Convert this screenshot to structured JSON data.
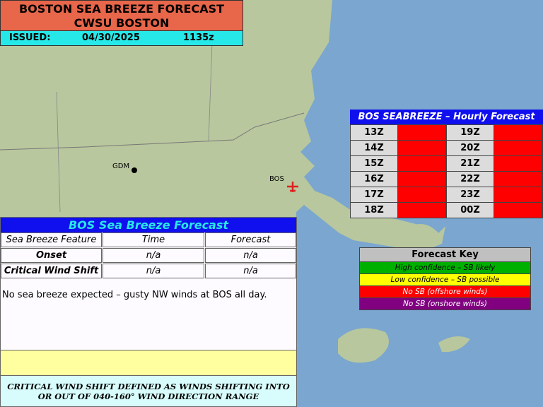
{
  "header": {
    "title": "BOSTON SEA BREEZE FORECAST",
    "office": "CWSU BOSTON",
    "issued_label": "ISSUED:",
    "issued_date": "04/30/2025",
    "issued_time": "1135z"
  },
  "map_labels": {
    "gdm": "GDM",
    "bos": "BOS"
  },
  "hourly": {
    "title": "BOS SEABREEZE – Hourly Forecast",
    "cells": [
      {
        "hour": "13Z",
        "color": "#ff0000"
      },
      {
        "hour": "14Z",
        "color": "#ff0000"
      },
      {
        "hour": "15Z",
        "color": "#ff0000"
      },
      {
        "hour": "16Z",
        "color": "#ff0000"
      },
      {
        "hour": "17Z",
        "color": "#ff0000"
      },
      {
        "hour": "18Z",
        "color": "#ff0000"
      },
      {
        "hour": "19Z",
        "color": "#ff0000"
      },
      {
        "hour": "20Z",
        "color": "#ff0000"
      },
      {
        "hour": "21Z",
        "color": "#ff0000"
      },
      {
        "hour": "22Z",
        "color": "#ff0000"
      },
      {
        "hour": "23Z",
        "color": "#ff0000"
      },
      {
        "hour": "00Z",
        "color": "#ff0000"
      }
    ]
  },
  "key": {
    "title": "Forecast Key",
    "items": [
      {
        "label": "High confidence – SB likely",
        "color": "#00b000",
        "text_color": "#000000"
      },
      {
        "label": "Low confidence – SB possible",
        "color": "#ffff00",
        "text_color": "#000000"
      },
      {
        "label": "No SB (offshore winds)",
        "color": "#ff0000",
        "text_color": "#ffffff"
      },
      {
        "label": "No SB (onshore winds)",
        "color": "#800080",
        "text_color": "#ffffff"
      }
    ]
  },
  "forecast": {
    "title": "BOS Sea Breeze Forecast",
    "headers": [
      "Sea Breeze Feature",
      "Time",
      "Forecast"
    ],
    "rows": [
      [
        "Onset",
        "n/a",
        "n/a"
      ],
      [
        "Critical Wind Shift",
        "n/a",
        "n/a"
      ]
    ],
    "note": "No sea breeze expected – gusty NW winds at BOS all day.",
    "footer": "CRITICAL WIND SHIFT DEFINED AS WINDS SHIFTING INTO OR OUT OF 040-160° WIND DIRECTION RANGE"
  }
}
